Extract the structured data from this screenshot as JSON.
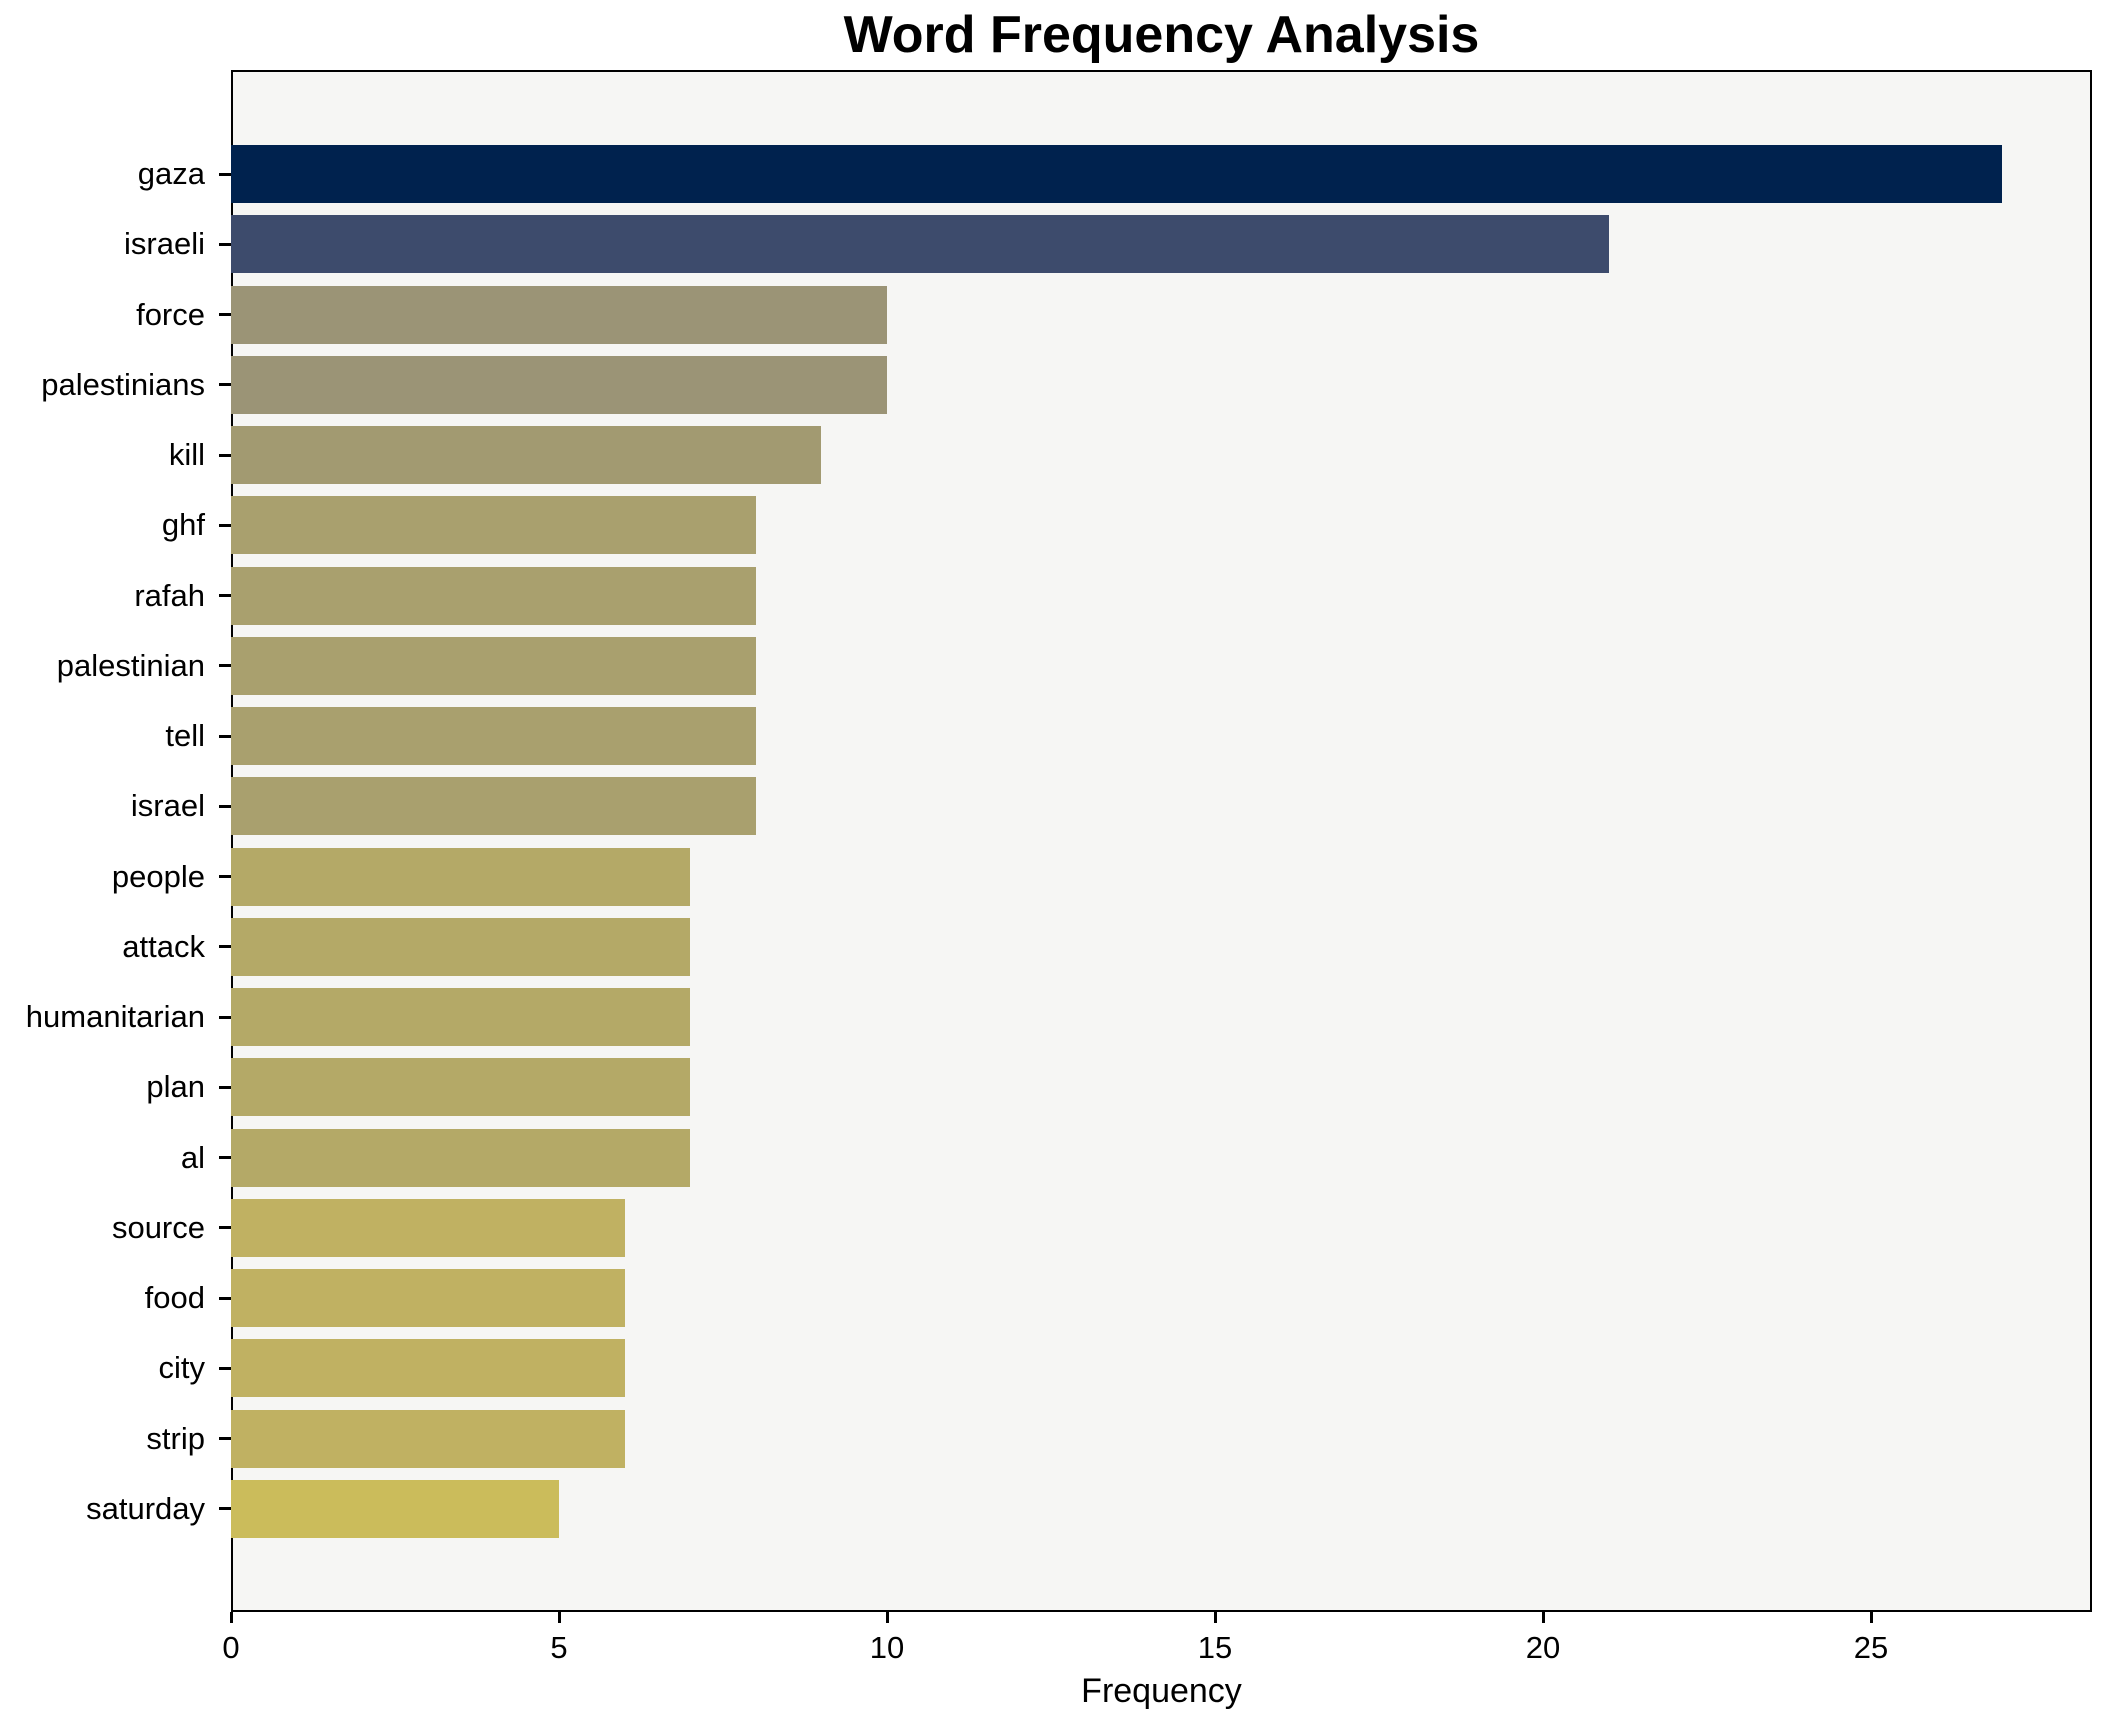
{
  "figure": {
    "title": "Word Frequency Analysis",
    "background_color": "#ffffff",
    "axes_background_color": "#f6f6f4",
    "spine_color": "#000000"
  },
  "chart_data": {
    "type": "bar",
    "orientation": "horizontal",
    "title": "Word Frequency Analysis",
    "xlabel": "Frequency",
    "ylabel": "",
    "grid": false,
    "legend_position": "none",
    "xlim": [
      0,
      28.4
    ],
    "xticks": [
      0,
      5,
      10,
      15,
      20,
      25
    ],
    "categories": [
      "gaza",
      "israeli",
      "force",
      "palestinians",
      "kill",
      "ghf",
      "rafah",
      "palestinian",
      "tell",
      "israel",
      "people",
      "attack",
      "humanitarian",
      "plan",
      "al",
      "source",
      "food",
      "city",
      "strip",
      "saturday"
    ],
    "values": [
      27,
      21,
      10,
      10,
      9,
      8,
      8,
      8,
      8,
      8,
      7,
      7,
      7,
      7,
      7,
      6,
      6,
      6,
      6,
      5
    ],
    "bar_colors": [
      "#00224e",
      "#3d4b6c",
      "#9b9476",
      "#9b9476",
      "#a29a71",
      "#a9a06e",
      "#a9a06e",
      "#a9a06e",
      "#a9a06e",
      "#a9a06e",
      "#b4a967",
      "#b4a967",
      "#b4a967",
      "#b4a967",
      "#b4a967",
      "#c0b162",
      "#c0b162",
      "#c0b162",
      "#c0b162",
      "#cbbc5b"
    ]
  }
}
